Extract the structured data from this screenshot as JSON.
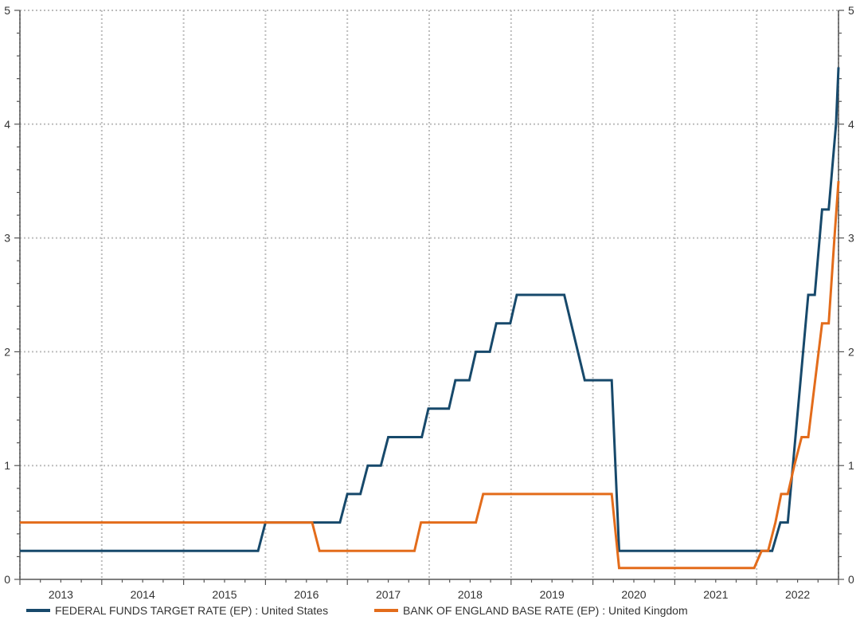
{
  "chart_data": {
    "type": "line",
    "title": "",
    "xlabel": "",
    "ylabel": "",
    "ylim": [
      0,
      5
    ],
    "xlim": [
      2012.5,
      2022.5
    ],
    "y_ticks": [
      0,
      1,
      2,
      3,
      4,
      5
    ],
    "x_tick_labels": [
      "2013",
      "2014",
      "2015",
      "2016",
      "2017",
      "2018",
      "2019",
      "2020",
      "2021",
      "2022"
    ],
    "grid": true,
    "legend_position": "bottom",
    "series": [
      {
        "name": "FEDERAL FUNDS TARGET RATE (EP) : United States",
        "color": "#17496b",
        "points": [
          [
            2012.5,
            0.25
          ],
          [
            2015.41,
            0.25
          ],
          [
            2015.5,
            0.5
          ],
          [
            2016.41,
            0.5
          ],
          [
            2016.5,
            0.75
          ],
          [
            2016.66,
            0.75
          ],
          [
            2016.75,
            1.0
          ],
          [
            2016.91,
            1.0
          ],
          [
            2017.0,
            1.25
          ],
          [
            2017.41,
            1.25
          ],
          [
            2017.49,
            1.5
          ],
          [
            2017.74,
            1.5
          ],
          [
            2017.82,
            1.75
          ],
          [
            2017.99,
            1.75
          ],
          [
            2018.07,
            2.0
          ],
          [
            2018.24,
            2.0
          ],
          [
            2018.32,
            2.25
          ],
          [
            2018.49,
            2.25
          ],
          [
            2018.57,
            2.5
          ],
          [
            2019.15,
            2.5
          ],
          [
            2019.4,
            1.75
          ],
          [
            2019.73,
            1.75
          ],
          [
            2019.82,
            0.25
          ],
          [
            2021.69,
            0.25
          ],
          [
            2021.79,
            0.5
          ],
          [
            2021.88,
            0.5
          ],
          [
            2022.13,
            2.5
          ],
          [
            2022.21,
            2.5
          ],
          [
            2022.3,
            3.25
          ],
          [
            2022.38,
            3.25
          ],
          [
            2022.47,
            4.0
          ],
          [
            2022.5,
            4.5
          ]
        ]
      },
      {
        "name": "BANK OF ENGLAND BASE RATE (EP) : United Kingdom",
        "color": "#e36c1b",
        "points": [
          [
            2012.5,
            0.5
          ],
          [
            2016.07,
            0.5
          ],
          [
            2016.16,
            0.25
          ],
          [
            2017.32,
            0.25
          ],
          [
            2017.4,
            0.5
          ],
          [
            2018.07,
            0.5
          ],
          [
            2018.16,
            0.75
          ],
          [
            2019.73,
            0.75
          ],
          [
            2019.82,
            0.1
          ],
          [
            2021.47,
            0.1
          ],
          [
            2021.56,
            0.25
          ],
          [
            2021.64,
            0.25
          ],
          [
            2021.73,
            0.5
          ],
          [
            2021.8,
            0.75
          ],
          [
            2021.88,
            0.75
          ],
          [
            2021.96,
            1.0
          ],
          [
            2022.05,
            1.25
          ],
          [
            2022.13,
            1.25
          ],
          [
            2022.3,
            2.25
          ],
          [
            2022.38,
            2.25
          ],
          [
            2022.45,
            3.0
          ],
          [
            2022.5,
            3.5
          ]
        ]
      }
    ]
  },
  "legend": {
    "items": [
      {
        "label": "FEDERAL FUNDS TARGET RATE (EP) : United States",
        "color": "#17496b"
      },
      {
        "label": "BANK OF ENGLAND BASE RATE (EP) : United Kingdom",
        "color": "#e36c1b"
      }
    ]
  }
}
